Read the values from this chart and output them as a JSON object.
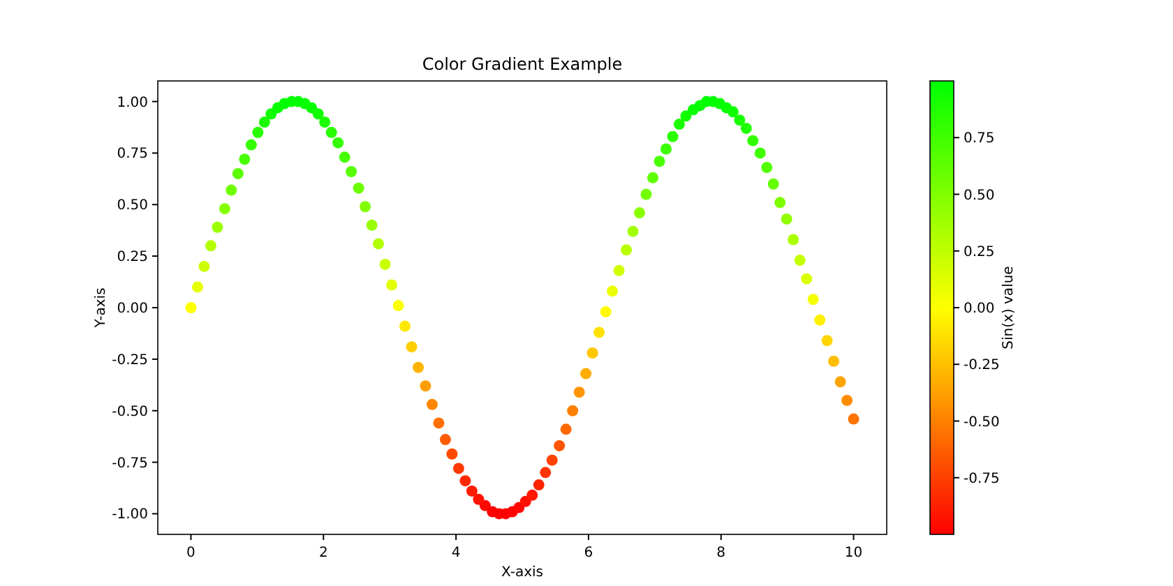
{
  "chart_data": {
    "type": "scatter",
    "title": "Color Gradient Example",
    "xlabel": "X-axis",
    "ylabel": "Y-axis",
    "clabel": "Sin(x) value",
    "x": [
      0,
      0.1,
      0.2,
      0.3,
      0.4,
      0.51,
      0.61,
      0.71,
      0.81,
      0.91,
      1.01,
      1.11,
      1.21,
      1.31,
      1.41,
      1.52,
      1.62,
      1.72,
      1.82,
      1.92,
      2.02,
      2.12,
      2.22,
      2.32,
      2.42,
      2.53,
      2.63,
      2.73,
      2.83,
      2.93,
      3.03,
      3.13,
      3.23,
      3.33,
      3.43,
      3.54,
      3.64,
      3.74,
      3.84,
      3.94,
      4.04,
      4.14,
      4.24,
      4.34,
      4.44,
      4.55,
      4.65,
      4.75,
      4.85,
      4.95,
      5.05,
      5.15,
      5.25,
      5.35,
      5.45,
      5.56,
      5.66,
      5.76,
      5.86,
      5.96,
      6.06,
      6.16,
      6.26,
      6.36,
      6.46,
      6.57,
      6.67,
      6.77,
      6.87,
      6.97,
      7.07,
      7.17,
      7.27,
      7.37,
      7.47,
      7.58,
      7.68,
      7.78,
      7.88,
      7.98,
      8.08,
      8.18,
      8.28,
      8.38,
      8.48,
      8.59,
      8.69,
      8.79,
      8.89,
      8.99,
      9.09,
      9.19,
      9.29,
      9.39,
      9.49,
      9.6,
      9.7,
      9.8,
      9.9,
      10
    ],
    "values": [
      0,
      0.1,
      0.2,
      0.3,
      0.39,
      0.48,
      0.57,
      0.65,
      0.72,
      0.79,
      0.85,
      0.9,
      0.94,
      0.97,
      0.99,
      1,
      1,
      0.99,
      0.97,
      0.94,
      0.9,
      0.85,
      0.8,
      0.73,
      0.66,
      0.58,
      0.49,
      0.4,
      0.31,
      0.21,
      0.11,
      0.01,
      -0.09,
      -0.19,
      -0.29,
      -0.38,
      -0.47,
      -0.56,
      -0.64,
      -0.71,
      -0.78,
      -0.84,
      -0.89,
      -0.93,
      -0.96,
      -0.99,
      -1,
      -1,
      -0.99,
      -0.97,
      -0.94,
      -0.91,
      -0.86,
      -0.8,
      -0.74,
      -0.67,
      -0.59,
      -0.5,
      -0.41,
      -0.32,
      -0.22,
      -0.12,
      -0.02,
      0.08,
      0.18,
      0.28,
      0.37,
      0.46,
      0.55,
      0.63,
      0.71,
      0.77,
      0.83,
      0.89,
      0.93,
      0.96,
      0.98,
      1,
      1,
      0.99,
      0.97,
      0.95,
      0.91,
      0.87,
      0.81,
      0.75,
      0.68,
      0.6,
      0.51,
      0.43,
      0.33,
      0.23,
      0.14,
      0.04,
      -0.06,
      -0.16,
      -0.26,
      -0.36,
      -0.45,
      -0.54
    ],
    "cvalues": [
      0,
      0.1,
      0.2,
      0.3,
      0.39,
      0.48,
      0.57,
      0.65,
      0.72,
      0.79,
      0.85,
      0.9,
      0.94,
      0.97,
      0.99,
      1,
      1,
      0.99,
      0.97,
      0.94,
      0.9,
      0.85,
      0.8,
      0.73,
      0.66,
      0.58,
      0.49,
      0.4,
      0.31,
      0.21,
      0.11,
      0.01,
      -0.09,
      -0.19,
      -0.29,
      -0.38,
      -0.47,
      -0.56,
      -0.64,
      -0.71,
      -0.78,
      -0.84,
      -0.89,
      -0.93,
      -0.96,
      -0.99,
      -1,
      -1,
      -0.99,
      -0.97,
      -0.94,
      -0.91,
      -0.86,
      -0.8,
      -0.74,
      -0.67,
      -0.59,
      -0.5,
      -0.41,
      -0.32,
      -0.22,
      -0.12,
      -0.02,
      0.08,
      0.18,
      0.28,
      0.37,
      0.46,
      0.55,
      0.63,
      0.71,
      0.77,
      0.83,
      0.89,
      0.93,
      0.96,
      0.98,
      1,
      1,
      0.99,
      0.97,
      0.95,
      0.91,
      0.87,
      0.81,
      0.75,
      0.68,
      0.6,
      0.51,
      0.43,
      0.33,
      0.23,
      0.14,
      0.04,
      -0.06,
      -0.16,
      -0.26,
      -0.36,
      -0.45,
      -0.54
    ],
    "xlim": [
      -0.5,
      10.5
    ],
    "xticks": [
      0,
      2,
      4,
      6,
      8,
      10
    ],
    "ylim": [
      -1.1,
      1.1
    ],
    "yticks": [
      {
        "value": -1,
        "label": "-1.00"
      },
      {
        "value": -0.75,
        "label": "-0.75"
      },
      {
        "value": -0.5,
        "label": "-0.50"
      },
      {
        "value": -0.25,
        "label": "-0.25"
      },
      {
        "value": 0,
        "label": "0.00"
      },
      {
        "value": 0.25,
        "label": "0.25"
      },
      {
        "value": 0.5,
        "label": "0.50"
      },
      {
        "value": 0.75,
        "label": "0.75"
      },
      {
        "value": 1,
        "label": "1.00"
      }
    ],
    "clim": [
      -1,
      1
    ],
    "cticks": [
      {
        "value": -0.75,
        "label": "-0.75"
      },
      {
        "value": -0.5,
        "label": "-0.50"
      },
      {
        "value": -0.25,
        "label": "-0.25"
      },
      {
        "value": 0,
        "label": "0.00"
      },
      {
        "value": 0.25,
        "label": "0.25"
      },
      {
        "value": 0.5,
        "label": "0.50"
      },
      {
        "value": 0.75,
        "label": "0.75"
      }
    ],
    "marker": "circle",
    "grid": false
  }
}
